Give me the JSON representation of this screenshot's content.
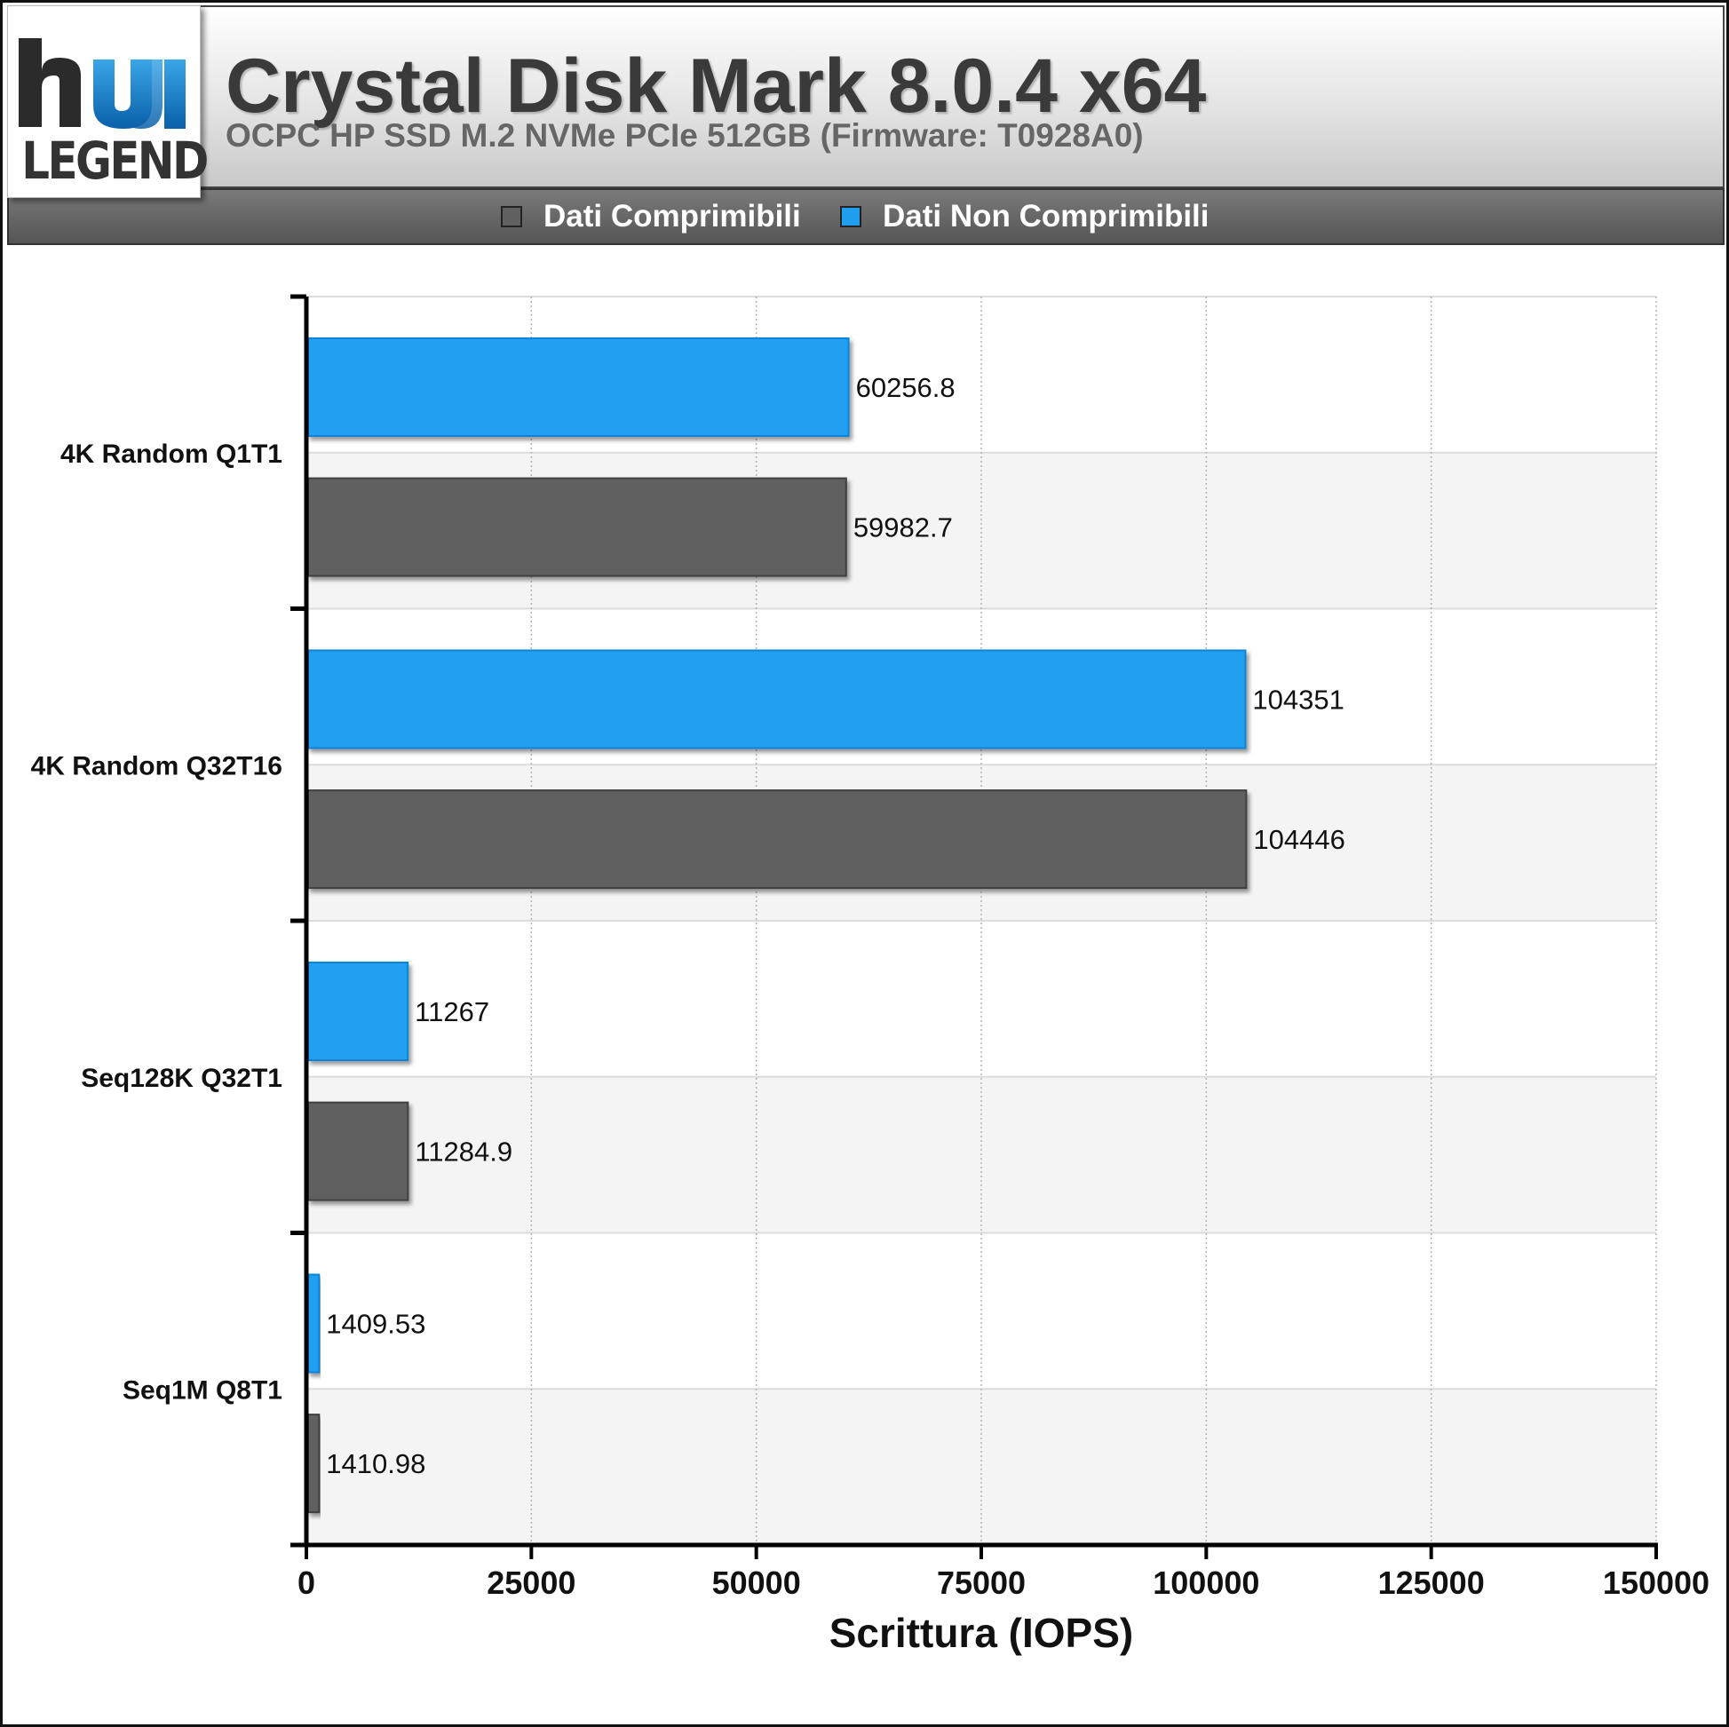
{
  "logo": {
    "mark": "hu",
    "word": "LEGEND"
  },
  "header": {
    "title": "Crystal Disk Mark 8.0.4 x64",
    "subtitle": "OCPC HP SSD M.2 NVMe PCIe 512GB (Firmware: T0928A0)"
  },
  "legend": {
    "items": [
      {
        "label": "Dati Comprimibili",
        "color": "#616161"
      },
      {
        "label": "Dati Non Comprimibili",
        "color": "#209ff0"
      }
    ]
  },
  "chart_data": {
    "type": "bar",
    "orientation": "horizontal",
    "title": "Crystal Disk Mark 8.0.4 x64",
    "subtitle": "OCPC HP SSD M.2 NVMe PCIe 512GB (Firmware: T0928A0)",
    "xlabel": "Scrittura (IOPS)",
    "ylabel": "",
    "xlim": [
      0,
      150000
    ],
    "xticks": [
      0,
      25000,
      50000,
      75000,
      100000,
      125000,
      150000
    ],
    "categories": [
      "4K Random Q1T1",
      "4K Random Q32T16",
      "Seq128K Q32T1",
      "Seq1M Q8T1"
    ],
    "series": [
      {
        "name": "Dati Non Comprimibili",
        "color": "#209ff0",
        "values": [
          60256.8,
          104351,
          11267,
          1409.53
        ],
        "labels": [
          "60256.8",
          "104351",
          "11267",
          "1409.53"
        ]
      },
      {
        "name": "Dati Comprimibili",
        "color": "#616161",
        "values": [
          59982.7,
          104446,
          11284.9,
          1410.98
        ],
        "labels": [
          "59982.7",
          "104446",
          "11284.9",
          "1410.98"
        ]
      }
    ],
    "grid": true,
    "legend_position": "top"
  }
}
